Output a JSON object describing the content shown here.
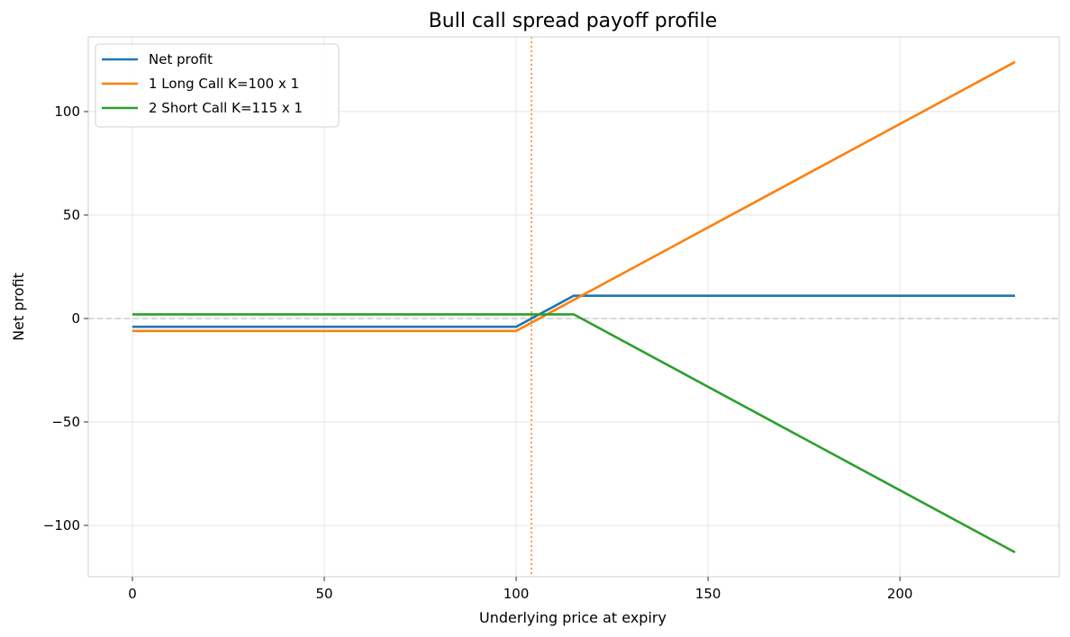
{
  "chart_data": {
    "type": "line",
    "title": "Bull call spread payoff profile",
    "xlabel": "Underlying price at expiry",
    "ylabel": "Net profit",
    "xlim": [
      -11.5,
      241.5
    ],
    "ylim": [
      -124.8,
      136.1
    ],
    "xticks": [
      0,
      50,
      100,
      150,
      200
    ],
    "yticks": [
      -100,
      -50,
      0,
      50,
      100
    ],
    "x_tick_labels": [
      "0",
      "50",
      "100",
      "150",
      "200"
    ],
    "y_tick_labels": [
      "−100",
      "−50",
      "0",
      "50",
      "100"
    ],
    "grid": true,
    "legend_position": "top-left",
    "breakeven_x": 104,
    "zero_line": 0,
    "series": [
      {
        "name": "Net profit",
        "color": "#1f77b4",
        "x": [
          0,
          100,
          115,
          230
        ],
        "y": [
          -4,
          -4,
          11,
          11
        ]
      },
      {
        "name": "1 Long Call K=100 x 1",
        "color": "#ff7f0e",
        "x": [
          0,
          100,
          230
        ],
        "y": [
          -6,
          -6,
          124
        ]
      },
      {
        "name": "2 Short Call K=115 x 1",
        "color": "#2ca02c",
        "x": [
          0,
          115,
          230
        ],
        "y": [
          2,
          2,
          -113
        ]
      }
    ]
  }
}
